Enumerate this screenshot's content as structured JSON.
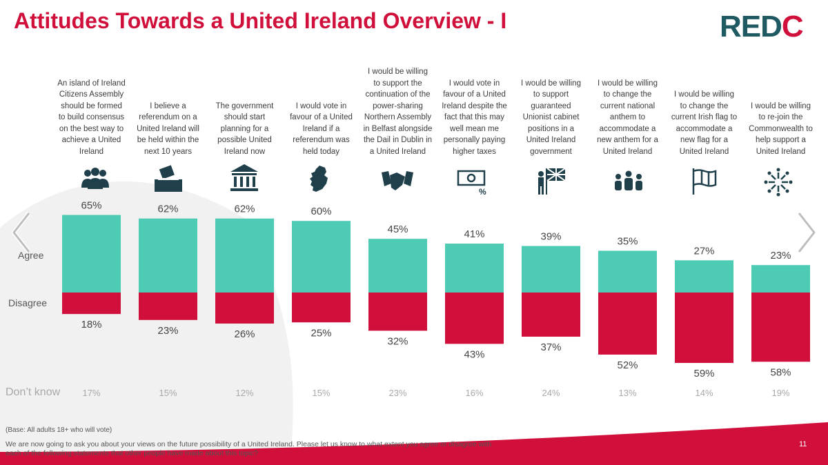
{
  "title": "Attitudes Towards a United Ireland Overview - I",
  "logo": {
    "text_main": "RED",
    "text_accent": "C"
  },
  "row_labels": {
    "agree": "Agree",
    "disagree": "Disagree",
    "dont_know": "Don’t know"
  },
  "footer": {
    "base": "(Base: All adults 18+ who will vote)",
    "question": "We are now going to ask you about your views on the future possibility of a United Ireland. Please let us know to what extent you agree or disagree with each of the following statements that other people have made about this topic?",
    "page_number": "11"
  },
  "colors": {
    "agree": "#4ecbb4",
    "disagree": "#d0103a",
    "title": "#d0103a",
    "logo": "#1f5962",
    "icon": "#1f3f4a"
  },
  "icons": [
    "people-group-icon",
    "ballot-box-icon",
    "government-building-icon",
    "ireland-map-icon",
    "handshake-icon",
    "money-percent-icon",
    "person-union-flag-icon",
    "three-people-icon",
    "flag-icon",
    "commonwealth-people-circle-icon"
  ],
  "chart_data": {
    "type": "bar",
    "categories": [
      "An island of Ireland Citizens Assembly should be formed to build consensus on the best way to achieve a United Ireland",
      "I believe a referendum on a United Ireland will be held within the next 10 years",
      "The government should start planning for a possible United Ireland now",
      "I would vote in favour of a United Ireland if a referendum was held today",
      "I would be willing to support the continuation of the power-sharing Northern Assembly in Belfast alongside the Dail in Dublin in a United Ireland",
      "I would vote in favour of a United Ireland despite the fact that this may well mean me personally paying higher taxes",
      "I would be willing to support guaranteed Unionist cabinet positions in a United Ireland government",
      "I would be willing to change the current national anthem to accommodate a new anthem for a United Ireland",
      "I would be willing to change the current Irish flag to accommodate a new flag for a United Ireland",
      "I would be willing to re-join the Commonwealth to help support a United Ireland"
    ],
    "category_lines": [
      [
        "An island of Ireland",
        "Citizens Assembly",
        "should be formed",
        "to build consensus",
        "on the best way to",
        "achieve a United",
        "Ireland"
      ],
      [
        "I believe a",
        "referendum on a",
        "United Ireland will",
        "be held within the",
        "next 10 years"
      ],
      [
        "The government",
        "should start",
        "planning for a",
        "possible United",
        "Ireland now"
      ],
      [
        "I would vote in",
        "favour of a United",
        "Ireland if a",
        "referendum was",
        "held today"
      ],
      [
        "I would be willing",
        "to support the",
        "continuation of the",
        "power-sharing",
        "Northern Assembly",
        "in Belfast alongside",
        "the Dail in Dublin in",
        "a United Ireland"
      ],
      [
        "I would vote in",
        "favour of a United",
        "Ireland despite the",
        "fact that this may",
        "well mean me",
        "personally paying",
        "higher taxes"
      ],
      [
        "I would be willing",
        "to support",
        "guaranteed",
        "Unionist cabinet",
        "positions in a",
        "United Ireland",
        "government"
      ],
      [
        "I would be willing",
        "to change the",
        "current national",
        "anthem to",
        "accommodate a",
        "new anthem for a",
        "United Ireland"
      ],
      [
        "I would be willing",
        "to change the",
        "current Irish flag to",
        "accommodate a",
        "new flag for a",
        "United Ireland"
      ],
      [
        "I would be willing",
        "to re-join the",
        "Commonwealth to",
        "help support a",
        "United Ireland"
      ]
    ],
    "series": [
      {
        "name": "Agree",
        "values": [
          65,
          62,
          62,
          60,
          45,
          41,
          39,
          35,
          27,
          23
        ]
      },
      {
        "name": "Disagree",
        "values": [
          18,
          23,
          26,
          25,
          32,
          43,
          37,
          52,
          59,
          58
        ]
      },
      {
        "name": "Don’t know",
        "values": [
          17,
          15,
          12,
          15,
          23,
          16,
          24,
          13,
          14,
          19
        ]
      }
    ],
    "labels": {
      "agree": [
        "65%",
        "62%",
        "62%",
        "60%",
        "45%",
        "41%",
        "39%",
        "35%",
        "27%",
        "23%"
      ],
      "disagree": [
        "18%",
        "23%",
        "26%",
        "25%",
        "32%",
        "43%",
        "37%",
        "52%",
        "59%",
        "58%"
      ],
      "dont_know": [
        "17%",
        "15%",
        "12%",
        "15%",
        "23%",
        "16%",
        "24%",
        "13%",
        "14%",
        "19%"
      ]
    },
    "unit": "%",
    "ylim": [
      -60,
      70
    ],
    "grid": false,
    "legend": "none (row labels on left)"
  }
}
